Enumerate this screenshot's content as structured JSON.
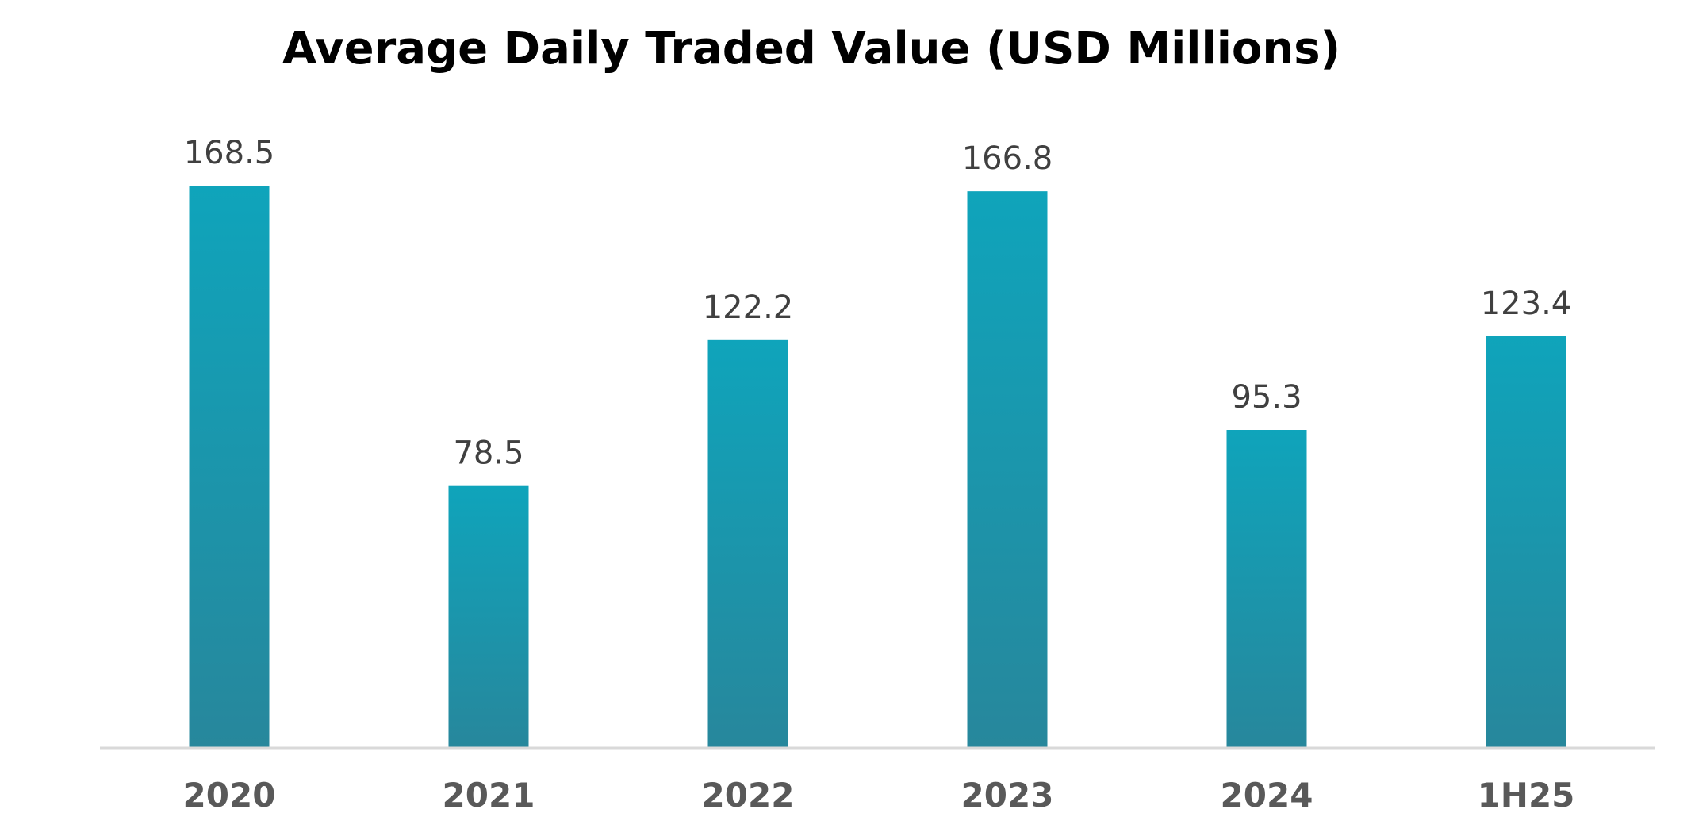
{
  "chart_data": {
    "type": "bar",
    "title": "Average Daily Traded Value (USD Millions)",
    "xlabel": "",
    "ylabel": "",
    "categories": [
      "2020",
      "2021",
      "2022",
      "2023",
      "2024",
      "1H25"
    ],
    "values": [
      168.5,
      78.5,
      122.2,
      166.8,
      95.3,
      123.4
    ],
    "value_labels": [
      "168.5",
      "78.5",
      "122.2",
      "166.8",
      "95.3",
      "123.4"
    ],
    "ylim": [
      0,
      168.5
    ],
    "grid": false,
    "legend": "none",
    "colors": {
      "bar_top": "#0fa4bb",
      "bar_bottom": "#27879c",
      "axis": "#d9d9d9",
      "value_text": "#404040",
      "category_text": "#595959",
      "title_text": "#000000"
    }
  }
}
